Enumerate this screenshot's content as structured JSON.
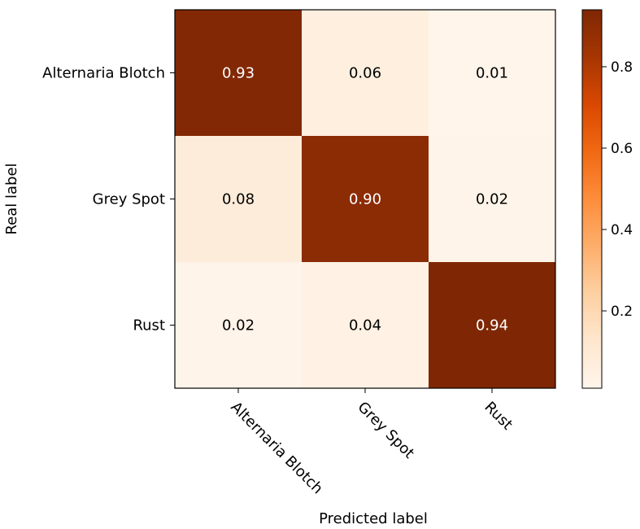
{
  "chart_data": {
    "type": "heatmap",
    "title": "",
    "xlabel": "Predicted label",
    "ylabel": "Real label",
    "x_categories": [
      "Alternaria Blotch",
      "Grey Spot",
      "Rust"
    ],
    "y_categories": [
      "Alternaria Blotch",
      "Grey Spot",
      "Rust"
    ],
    "values": [
      [
        0.93,
        0.06,
        0.01
      ],
      [
        0.08,
        0.9,
        0.02
      ],
      [
        0.02,
        0.04,
        0.94
      ]
    ],
    "cell_labels": [
      [
        "0.93",
        "0.06",
        "0.01"
      ],
      [
        "0.08",
        "0.90",
        "0.02"
      ],
      [
        "0.02",
        "0.04",
        "0.94"
      ]
    ],
    "colormap": "Oranges",
    "colorbar": {
      "range": [
        0.01,
        0.94
      ],
      "ticks": [
        0.2,
        0.4,
        0.6,
        0.8
      ],
      "tick_labels": [
        "0.2",
        "0.4",
        "0.6",
        "0.8"
      ]
    },
    "colors": {
      "low": "#fff5eb",
      "high": "#7f2704",
      "light_text": "#ffffff",
      "dark_text": "#000000"
    }
  }
}
